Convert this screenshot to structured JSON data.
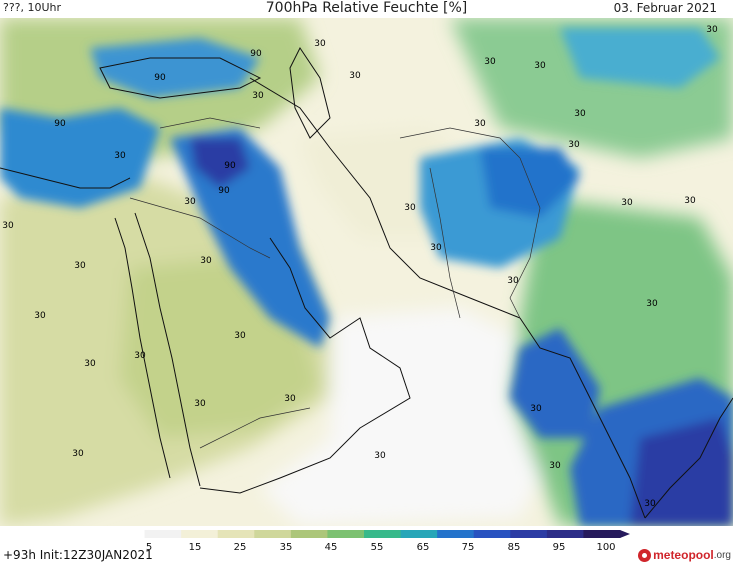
{
  "header": {
    "left": "???, 10Uhr",
    "title": "700hPa Relative Feuchte [%]",
    "date": "03. Februar 2021"
  },
  "map": {
    "contour_labels": [
      "90",
      "90",
      "90",
      "90",
      "90",
      "30",
      "30",
      "30",
      "30",
      "30",
      "30",
      "30",
      "30",
      "30",
      "30",
      "30",
      "30",
      "30",
      "30",
      "30",
      "30",
      "30",
      "30",
      "30",
      "30",
      "30",
      "30",
      "30",
      "30",
      "30",
      "30",
      "30",
      "30",
      "30",
      "30",
      "30"
    ]
  },
  "colorbar": {
    "ticks": [
      "5",
      "15",
      "25",
      "35",
      "45",
      "55",
      "65",
      "75",
      "85",
      "95",
      "100"
    ],
    "colors": [
      "#ffffff",
      "#f2f2f2",
      "#f3f0d8",
      "#e5e4b8",
      "#cfd79b",
      "#acc67a",
      "#7cc171",
      "#37b98a",
      "#27a6b8",
      "#2473cb",
      "#2852c0",
      "#2c3ca4",
      "#2c2d88",
      "#261a5c"
    ]
  },
  "footer": {
    "init": "+93h Init:12Z30JAN2021",
    "logo_name": "meteopool",
    "logo_tld": ".org"
  }
}
